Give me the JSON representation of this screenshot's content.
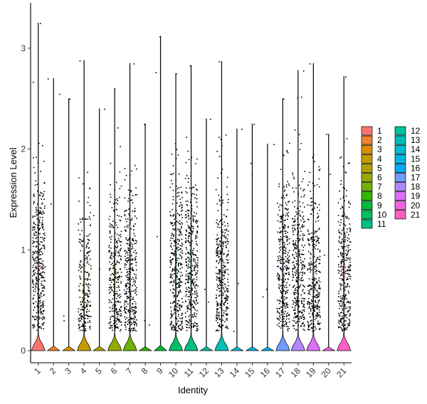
{
  "chart_data": {
    "type": "violin",
    "title": "",
    "xlabel": "Identity",
    "ylabel": "Expression Level",
    "ylim": [
      -0.12,
      3.45
    ],
    "yticks": [
      0,
      1,
      2,
      3
    ],
    "categories": [
      "1",
      "2",
      "3",
      "4",
      "5",
      "6",
      "7",
      "8",
      "9",
      "10",
      "11",
      "12",
      "13",
      "14",
      "15",
      "16",
      "17",
      "18",
      "19",
      "20",
      "21"
    ],
    "colors": [
      "#F8766D",
      "#EB8335",
      "#DA8F00",
      "#C49A00",
      "#AFA200",
      "#94AA00",
      "#6FB000",
      "#33B600",
      "#00BA38",
      "#00BD62",
      "#00BF81",
      "#00C09D",
      "#00BFB8",
      "#00BCD0",
      "#00B5E6",
      "#00AAF9",
      "#719CFF",
      "#B186FF",
      "#DA6FF8",
      "#F263E2",
      "#FF61C3"
    ],
    "series": [
      {
        "values": [
          0.0,
          0.94,
          0.84,
          3.25
        ]
      },
      {
        "values": [
          0.0,
          0.0,
          0.16,
          2.7
        ]
      },
      {
        "values": [
          0.0,
          0.0,
          0.0,
          2.5
        ]
      },
      {
        "values": [
          0.0,
          0.75,
          0.6,
          2.88
        ]
      },
      {
        "values": [
          0.0,
          0.0,
          0.4,
          2.4
        ]
      },
      {
        "values": [
          0.0,
          0.85,
          0.7,
          2.6
        ]
      },
      {
        "values": [
          0.0,
          0.88,
          0.72,
          2.85
        ]
      },
      {
        "values": [
          0.0,
          0.0,
          0.0,
          2.25
        ]
      },
      {
        "values": [
          0.0,
          0.0,
          0.24,
          3.12
        ]
      },
      {
        "values": [
          0.0,
          0.92,
          0.8,
          2.75
        ]
      },
      {
        "values": [
          0.0,
          0.93,
          0.82,
          2.83
        ]
      },
      {
        "values": [
          0.0,
          0.0,
          0.0,
          2.3
        ]
      },
      {
        "values": [
          0.0,
          0.9,
          0.78,
          2.87
        ]
      },
      {
        "values": [
          0.0,
          0.0,
          0.0,
          2.2
        ]
      },
      {
        "values": [
          0.0,
          0.0,
          0.0,
          2.25
        ]
      },
      {
        "values": [
          0.0,
          0.0,
          0.0,
          2.05
        ]
      },
      {
        "values": [
          0.0,
          0.9,
          0.8,
          2.5
        ]
      },
      {
        "values": [
          0.0,
          0.9,
          0.8,
          2.78
        ]
      },
      {
        "values": [
          0.0,
          0.9,
          0.78,
          2.85
        ]
      },
      {
        "values": [
          0.0,
          0.0,
          0.0,
          2.15
        ]
      },
      {
        "values": [
          0.0,
          0.88,
          0.77,
          2.72
        ]
      }
    ],
    "legend": {
      "position": "right",
      "columns": 2,
      "entries": [
        "1",
        "2",
        "3",
        "4",
        "5",
        "6",
        "7",
        "8",
        "9",
        "10",
        "11",
        "12",
        "13",
        "14",
        "15",
        "16",
        "17",
        "18",
        "19",
        "20",
        "21"
      ]
    },
    "grid": false
  }
}
